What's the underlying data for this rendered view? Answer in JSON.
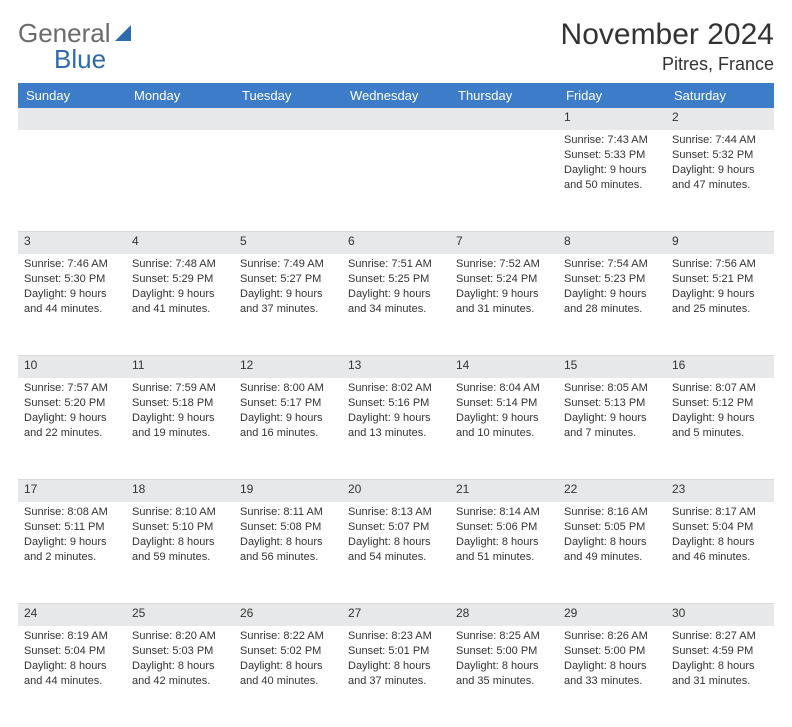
{
  "brand": {
    "part1": "General",
    "part2": "Blue"
  },
  "title": "November 2024",
  "location": "Pitres, France",
  "colors": {
    "header_bg": "#3d7cc9",
    "header_fg": "#ffffff",
    "daynum_bg": "#e7e8e9",
    "text": "#333333",
    "brand_gray": "#6b6b6b",
    "brand_blue": "#2f6aad"
  },
  "weekdays": [
    "Sunday",
    "Monday",
    "Tuesday",
    "Wednesday",
    "Thursday",
    "Friday",
    "Saturday"
  ],
  "weeks": [
    [
      null,
      null,
      null,
      null,
      null,
      {
        "n": "1",
        "sr": "7:43 AM",
        "ss": "5:33 PM",
        "dl": "9 hours and 50 minutes."
      },
      {
        "n": "2",
        "sr": "7:44 AM",
        "ss": "5:32 PM",
        "dl": "9 hours and 47 minutes."
      }
    ],
    [
      {
        "n": "3",
        "sr": "7:46 AM",
        "ss": "5:30 PM",
        "dl": "9 hours and 44 minutes."
      },
      {
        "n": "4",
        "sr": "7:48 AM",
        "ss": "5:29 PM",
        "dl": "9 hours and 41 minutes."
      },
      {
        "n": "5",
        "sr": "7:49 AM",
        "ss": "5:27 PM",
        "dl": "9 hours and 37 minutes."
      },
      {
        "n": "6",
        "sr": "7:51 AM",
        "ss": "5:25 PM",
        "dl": "9 hours and 34 minutes."
      },
      {
        "n": "7",
        "sr": "7:52 AM",
        "ss": "5:24 PM",
        "dl": "9 hours and 31 minutes."
      },
      {
        "n": "8",
        "sr": "7:54 AM",
        "ss": "5:23 PM",
        "dl": "9 hours and 28 minutes."
      },
      {
        "n": "9",
        "sr": "7:56 AM",
        "ss": "5:21 PM",
        "dl": "9 hours and 25 minutes."
      }
    ],
    [
      {
        "n": "10",
        "sr": "7:57 AM",
        "ss": "5:20 PM",
        "dl": "9 hours and 22 minutes."
      },
      {
        "n": "11",
        "sr": "7:59 AM",
        "ss": "5:18 PM",
        "dl": "9 hours and 19 minutes."
      },
      {
        "n": "12",
        "sr": "8:00 AM",
        "ss": "5:17 PM",
        "dl": "9 hours and 16 minutes."
      },
      {
        "n": "13",
        "sr": "8:02 AM",
        "ss": "5:16 PM",
        "dl": "9 hours and 13 minutes."
      },
      {
        "n": "14",
        "sr": "8:04 AM",
        "ss": "5:14 PM",
        "dl": "9 hours and 10 minutes."
      },
      {
        "n": "15",
        "sr": "8:05 AM",
        "ss": "5:13 PM",
        "dl": "9 hours and 7 minutes."
      },
      {
        "n": "16",
        "sr": "8:07 AM",
        "ss": "5:12 PM",
        "dl": "9 hours and 5 minutes."
      }
    ],
    [
      {
        "n": "17",
        "sr": "8:08 AM",
        "ss": "5:11 PM",
        "dl": "9 hours and 2 minutes."
      },
      {
        "n": "18",
        "sr": "8:10 AM",
        "ss": "5:10 PM",
        "dl": "8 hours and 59 minutes."
      },
      {
        "n": "19",
        "sr": "8:11 AM",
        "ss": "5:08 PM",
        "dl": "8 hours and 56 minutes."
      },
      {
        "n": "20",
        "sr": "8:13 AM",
        "ss": "5:07 PM",
        "dl": "8 hours and 54 minutes."
      },
      {
        "n": "21",
        "sr": "8:14 AM",
        "ss": "5:06 PM",
        "dl": "8 hours and 51 minutes."
      },
      {
        "n": "22",
        "sr": "8:16 AM",
        "ss": "5:05 PM",
        "dl": "8 hours and 49 minutes."
      },
      {
        "n": "23",
        "sr": "8:17 AM",
        "ss": "5:04 PM",
        "dl": "8 hours and 46 minutes."
      }
    ],
    [
      {
        "n": "24",
        "sr": "8:19 AM",
        "ss": "5:04 PM",
        "dl": "8 hours and 44 minutes."
      },
      {
        "n": "25",
        "sr": "8:20 AM",
        "ss": "5:03 PM",
        "dl": "8 hours and 42 minutes."
      },
      {
        "n": "26",
        "sr": "8:22 AM",
        "ss": "5:02 PM",
        "dl": "8 hours and 40 minutes."
      },
      {
        "n": "27",
        "sr": "8:23 AM",
        "ss": "5:01 PM",
        "dl": "8 hours and 37 minutes."
      },
      {
        "n": "28",
        "sr": "8:25 AM",
        "ss": "5:00 PM",
        "dl": "8 hours and 35 minutes."
      },
      {
        "n": "29",
        "sr": "8:26 AM",
        "ss": "5:00 PM",
        "dl": "8 hours and 33 minutes."
      },
      {
        "n": "30",
        "sr": "8:27 AM",
        "ss": "4:59 PM",
        "dl": "8 hours and 31 minutes."
      }
    ]
  ],
  "labels": {
    "sunrise": "Sunrise: ",
    "sunset": "Sunset: ",
    "daylight": "Daylight: "
  }
}
